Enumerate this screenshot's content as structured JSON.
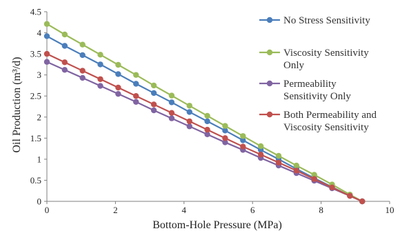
{
  "chart_data": {
    "type": "line",
    "xlabel": "Bottom-Hole Pressure (MPa)",
    "ylabel": "Oil Production (m³/d)",
    "xlim": [
      0,
      10
    ],
    "ylim": [
      0,
      4.5
    ],
    "xticks": [
      0,
      2,
      4,
      6,
      8,
      10
    ],
    "yticks": [
      0,
      0.5,
      1,
      1.5,
      2,
      2.5,
      3,
      3.5,
      4,
      4.5
    ],
    "grid": false,
    "legend_position": "top-right",
    "x": [
      0,
      0.52,
      1.04,
      1.56,
      2.08,
      2.6,
      3.12,
      3.64,
      4.16,
      4.68,
      5.2,
      5.72,
      6.24,
      6.76,
      7.28,
      7.8,
      8.32,
      8.84,
      9.2
    ],
    "series": [
      {
        "name": "No Stress Sensitivity",
        "color": "#4a7ebb",
        "values": [
          3.92,
          3.69,
          3.47,
          3.25,
          3.02,
          2.79,
          2.57,
          2.35,
          2.12,
          1.9,
          1.68,
          1.45,
          1.22,
          1.0,
          0.77,
          0.55,
          0.34,
          0.13,
          0.0
        ]
      },
      {
        "name": "Viscosity Sensitivity Only",
        "color": "#9bbb59",
        "values": [
          4.21,
          3.96,
          3.72,
          3.48,
          3.24,
          3.0,
          2.75,
          2.51,
          2.27,
          2.03,
          1.79,
          1.55,
          1.31,
          1.08,
          0.85,
          0.63,
          0.4,
          0.16,
          0.0
        ]
      },
      {
        "name": "Permeability Sensitivity Only",
        "color": "#8064a2",
        "values": [
          3.31,
          3.12,
          2.93,
          2.74,
          2.55,
          2.36,
          2.16,
          1.97,
          1.78,
          1.59,
          1.4,
          1.22,
          1.03,
          0.85,
          0.67,
          0.49,
          0.31,
          0.13,
          0.0
        ]
      },
      {
        "name": "Both Permeability and Viscosity Sensitivity",
        "color": "#c0504d",
        "values": [
          3.5,
          3.3,
          3.1,
          2.9,
          2.7,
          2.5,
          2.3,
          2.1,
          1.9,
          1.7,
          1.5,
          1.3,
          1.11,
          0.92,
          0.73,
          0.53,
          0.33,
          0.13,
          0.0
        ]
      }
    ],
    "legend_entries": [
      {
        "lines": [
          "No Stress Sensitivity"
        ]
      },
      {
        "lines": [
          "Viscosity Sensitivity",
          "Only"
        ]
      },
      {
        "lines": [
          "Permeability",
          "Sensitivity Only"
        ]
      },
      {
        "lines": [
          "Both Permeability and",
          "Viscosity Sensitivity"
        ]
      }
    ]
  }
}
